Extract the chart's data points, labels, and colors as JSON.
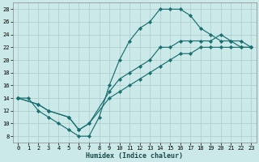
{
  "xlabel": "Humidex (Indice chaleur)",
  "bg_color": "#cce9e9",
  "grid_color": "#aacccc",
  "line_color": "#1a7070",
  "xlim": [
    -0.5,
    23.5
  ],
  "ylim": [
    7,
    29
  ],
  "xticks": [
    0,
    1,
    2,
    3,
    4,
    5,
    6,
    7,
    8,
    9,
    10,
    11,
    12,
    13,
    14,
    15,
    16,
    17,
    18,
    19,
    20,
    21,
    22,
    23
  ],
  "yticks": [
    8,
    10,
    12,
    14,
    16,
    18,
    20,
    22,
    24,
    26,
    28
  ],
  "line1_x": [
    0,
    1,
    2,
    3,
    4,
    5,
    6,
    7,
    8,
    9,
    10,
    11,
    12,
    13,
    14,
    15,
    16,
    17,
    18,
    19,
    20,
    21,
    22,
    23
  ],
  "line1_y": [
    14,
    14,
    12,
    11,
    10,
    9,
    8,
    8,
    11,
    16,
    20,
    23,
    25,
    26,
    28,
    28,
    28,
    27,
    25,
    24,
    23,
    23,
    22,
    22
  ],
  "line2_x": [
    0,
    2,
    3,
    5,
    6,
    7,
    9,
    10,
    11,
    12,
    13,
    14,
    15,
    16,
    17,
    18,
    19,
    20,
    21,
    22,
    23
  ],
  "line2_y": [
    14,
    13,
    12,
    11,
    9,
    10,
    15,
    17,
    18,
    19,
    20,
    22,
    22,
    23,
    23,
    23,
    23,
    24,
    23,
    23,
    22
  ],
  "line3_x": [
    0,
    2,
    3,
    5,
    6,
    7,
    9,
    10,
    11,
    12,
    13,
    14,
    15,
    16,
    17,
    18,
    19,
    20,
    21,
    22,
    23
  ],
  "line3_y": [
    14,
    13,
    12,
    11,
    9,
    10,
    14,
    15,
    16,
    17,
    18,
    19,
    20,
    21,
    21,
    22,
    22,
    22,
    22,
    22,
    22
  ]
}
